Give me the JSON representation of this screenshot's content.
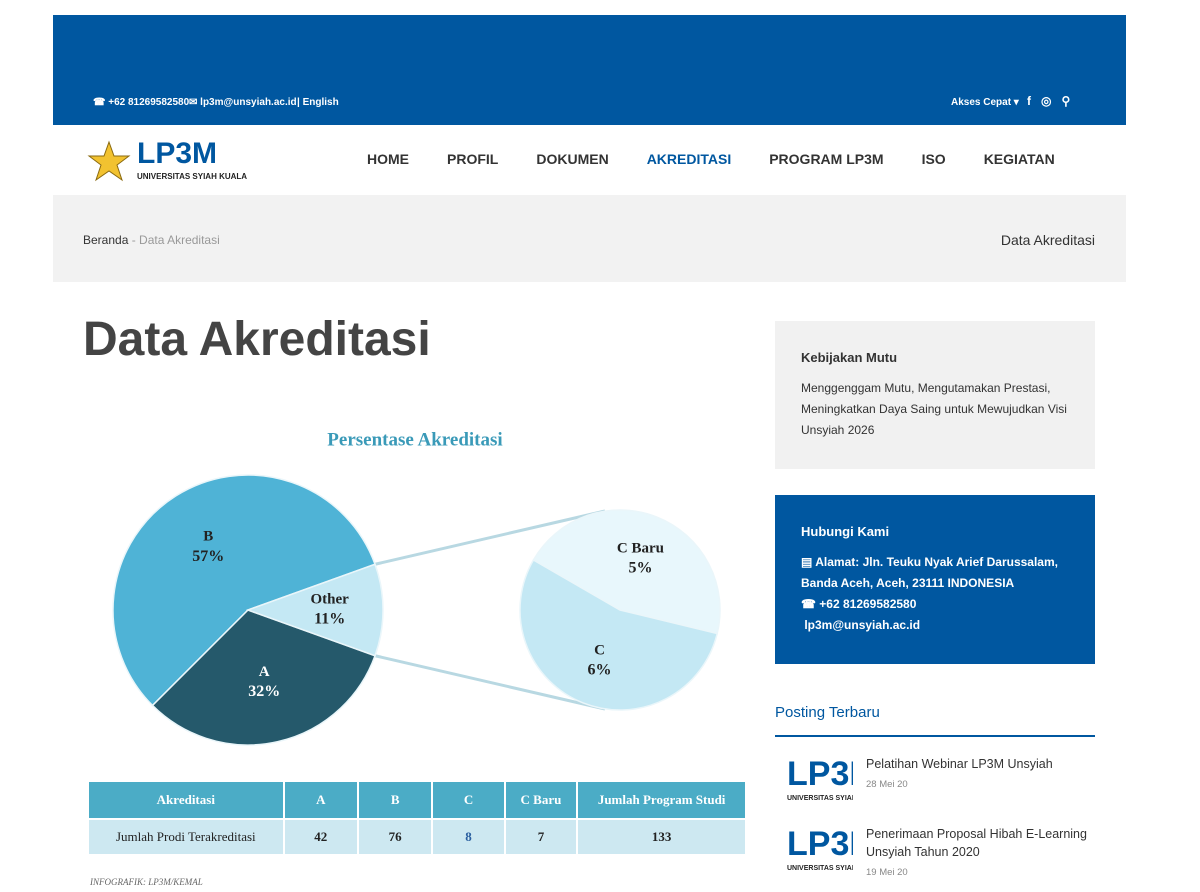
{
  "topbar": {
    "phone": "+62 81269582580",
    "email": "lp3m@unsyiah.ac.id",
    "language": "| English",
    "quick_access": "Akses Cepat"
  },
  "header": {
    "logo": {
      "name": "LP3M",
      "subtitle": "UNIVERSITAS SYIAH KUALA"
    },
    "nav": [
      "HOME",
      "PROFIL",
      "DOKUMEN",
      "AKREDITASI",
      "PROGRAM LP3M",
      "ISO",
      "KEGIATAN"
    ],
    "active_nav": 3
  },
  "breadcrumb": {
    "home": "Beranda",
    "current": "- Data Akreditasi",
    "page_label": "Data Akreditasi"
  },
  "main": {
    "title": "Data Akreditasi",
    "infographic": {
      "type": "pie-of-pie",
      "title": "Persentase Akreditasi",
      "categories": [
        "B",
        "A",
        "Other"
      ],
      "values": [
        57,
        32,
        11
      ],
      "value_labels": [
        "57%",
        "32%",
        "11%"
      ],
      "colors": [
        "#4fb3d6",
        "#25596b",
        "#c4e8f4"
      ],
      "secondary": {
        "categories": [
          "C Baru",
          "C"
        ],
        "values": [
          5,
          6
        ],
        "value_labels": [
          "5%",
          "6%"
        ],
        "colors": [
          "#e8f7fc",
          "#c4e8f4"
        ]
      }
    },
    "table": {
      "header": [
        "Akreditasi",
        "A",
        "B",
        "C",
        "C Baru",
        "Jumlah Program Studi"
      ],
      "rows": [
        [
          "Jumlah Prodi Terakreditasi",
          "42",
          "76",
          "8",
          "7",
          "133"
        ]
      ]
    },
    "credit": "INFOGRAFIK: LP3M/KEMAL"
  },
  "sidebar": {
    "policy": {
      "title": "Kebijakan Mutu",
      "text": "Menggenggam Mutu, Mengutamakan Prestasi, Meningkatkan Daya Saing untuk Mewujudkan Visi Unsyiah 2026"
    },
    "contact": {
      "title": "Hubungi Kami",
      "address": "Alamat: Jln. Teuku Nyak Arief Darussalam, Banda Aceh, Aceh, 23111 INDONESIA",
      "phone": "+62 81269582580",
      "email": "lp3m@unsyiah.ac.id"
    },
    "recent": {
      "title": "Posting Terbaru",
      "posts": [
        {
          "title": "Pelatihan Webinar LP3M Unsyiah",
          "date": "28 Mei 20"
        },
        {
          "title": "Penerimaan Proposal Hibah E-Learning Unsyiah Tahun 2020",
          "date": "19 Mei 20"
        }
      ]
    }
  }
}
